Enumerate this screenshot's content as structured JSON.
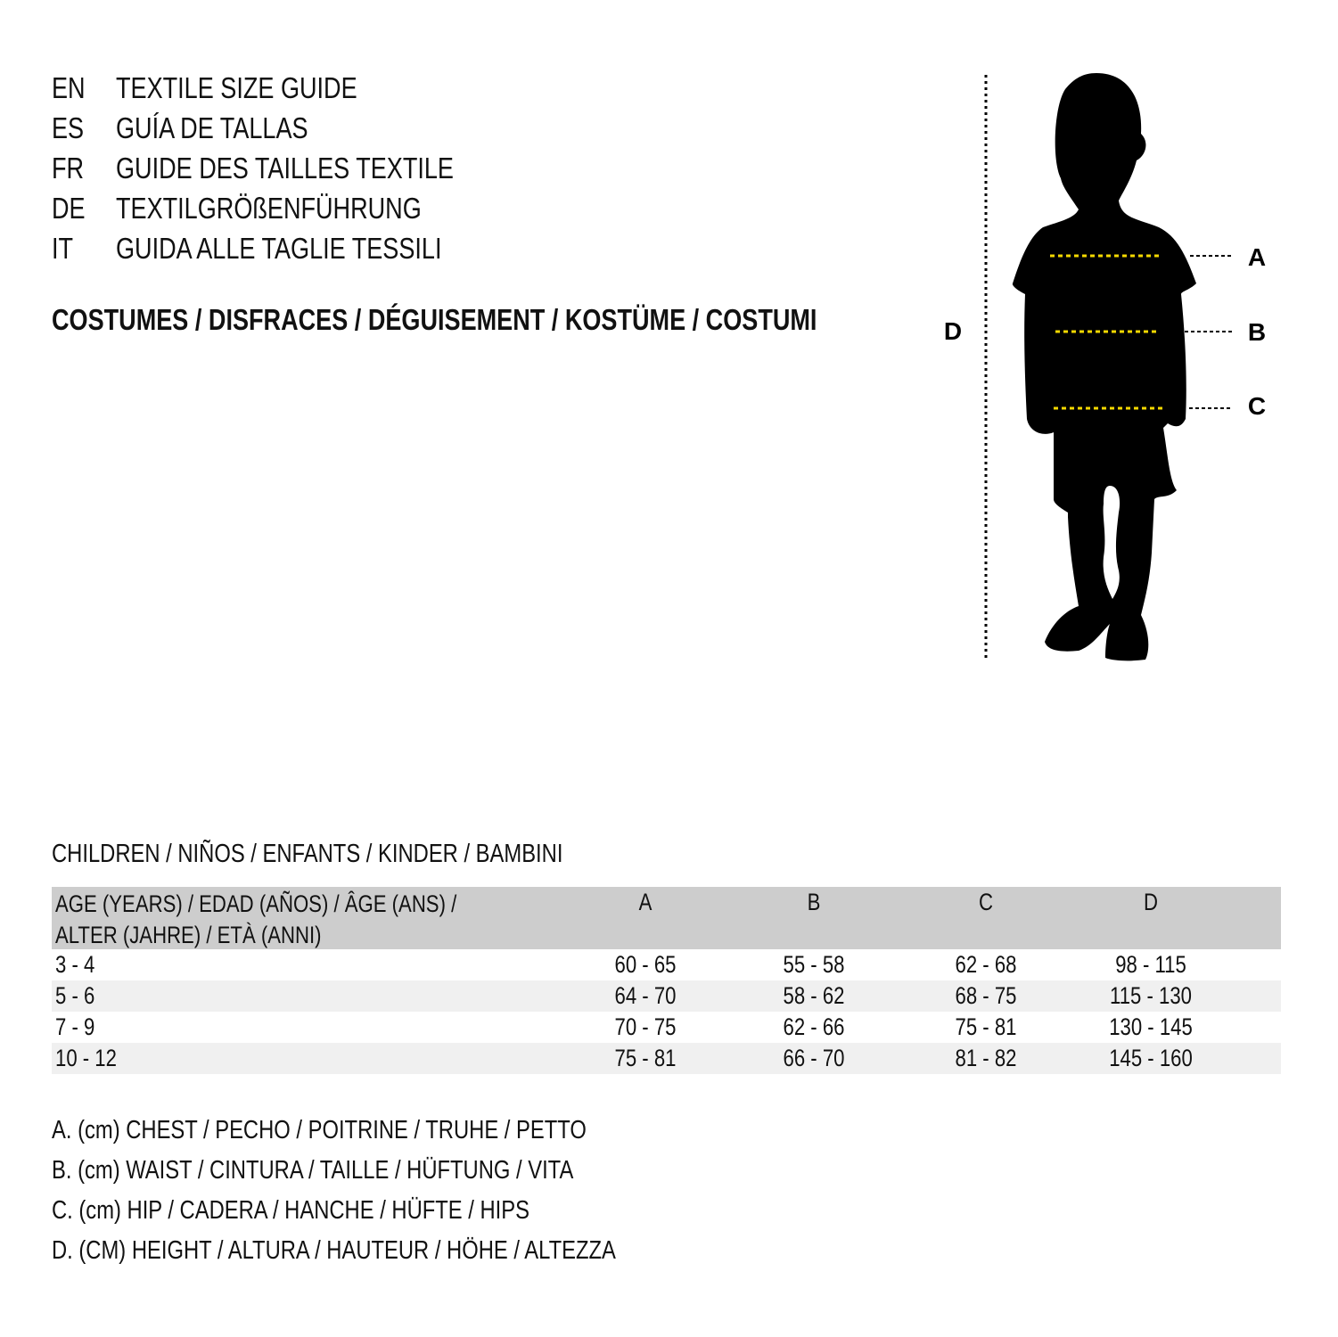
{
  "header": {
    "languages": [
      {
        "code": "EN",
        "label": "TEXTILE SIZE GUIDE"
      },
      {
        "code": "ES",
        "label": "GUÍA DE TALLAS"
      },
      {
        "code": "FR",
        "label": "GUIDE DES TAILLES TEXTILE"
      },
      {
        "code": "DE",
        "label": "TEXTILGRÖßENFÜHRUNG"
      },
      {
        "code": "IT",
        "label": "GUIDA ALLE TAGLIE TESSILI"
      }
    ],
    "category": "COSTUMES / DISFRACES / DÉGUISEMENT / KOSTÜME / COSTUMI"
  },
  "figure": {
    "labels": {
      "A": "A",
      "B": "B",
      "C": "C",
      "D": "D"
    },
    "marker_color": "#f5d800",
    "silhouette_color": "#000000"
  },
  "table": {
    "title": "CHILDREN / NIÑOS / ENFANTS / KINDER / BAMBINI",
    "header": {
      "age_line1": "AGE (YEARS) / EDAD (AÑOS) / ÂGE (ANS) /",
      "age_line2": "ALTER (JAHRE) / ETÀ (ANNI)",
      "cols": [
        "A",
        "B",
        "C",
        "D"
      ]
    },
    "rows": [
      {
        "age": "3 - 4",
        "values": [
          "60 - 65",
          "55 - 58",
          "62 - 68",
          "98 - 115"
        ]
      },
      {
        "age": "5 - 6",
        "values": [
          "64 - 70",
          "58 - 62",
          "68 - 75",
          "115 - 130"
        ]
      },
      {
        "age": "7 - 9",
        "values": [
          "70 - 75",
          "62 - 66",
          "75 - 81",
          "130 - 145"
        ]
      },
      {
        "age": "10 - 12",
        "values": [
          "75 - 81",
          "66 - 70",
          "81 - 82",
          "145 - 160"
        ]
      }
    ],
    "header_bg": "#cdcdcd",
    "alt_row_bg": "#f0f0f0"
  },
  "legend": [
    "A. (cm) CHEST / PECHO / POITRINE / TRUHE / PETTO",
    "B. (cm) WAIST / CINTURA / TAILLE / HÜFTUNG / VITA",
    "C. (cm) HIP / CADERA / HANCHE / HÜFTE / HIPS",
    "D. (CM) HEIGHT / ALTURA / HAUTEUR / HÖHE / ALTEZZA"
  ]
}
